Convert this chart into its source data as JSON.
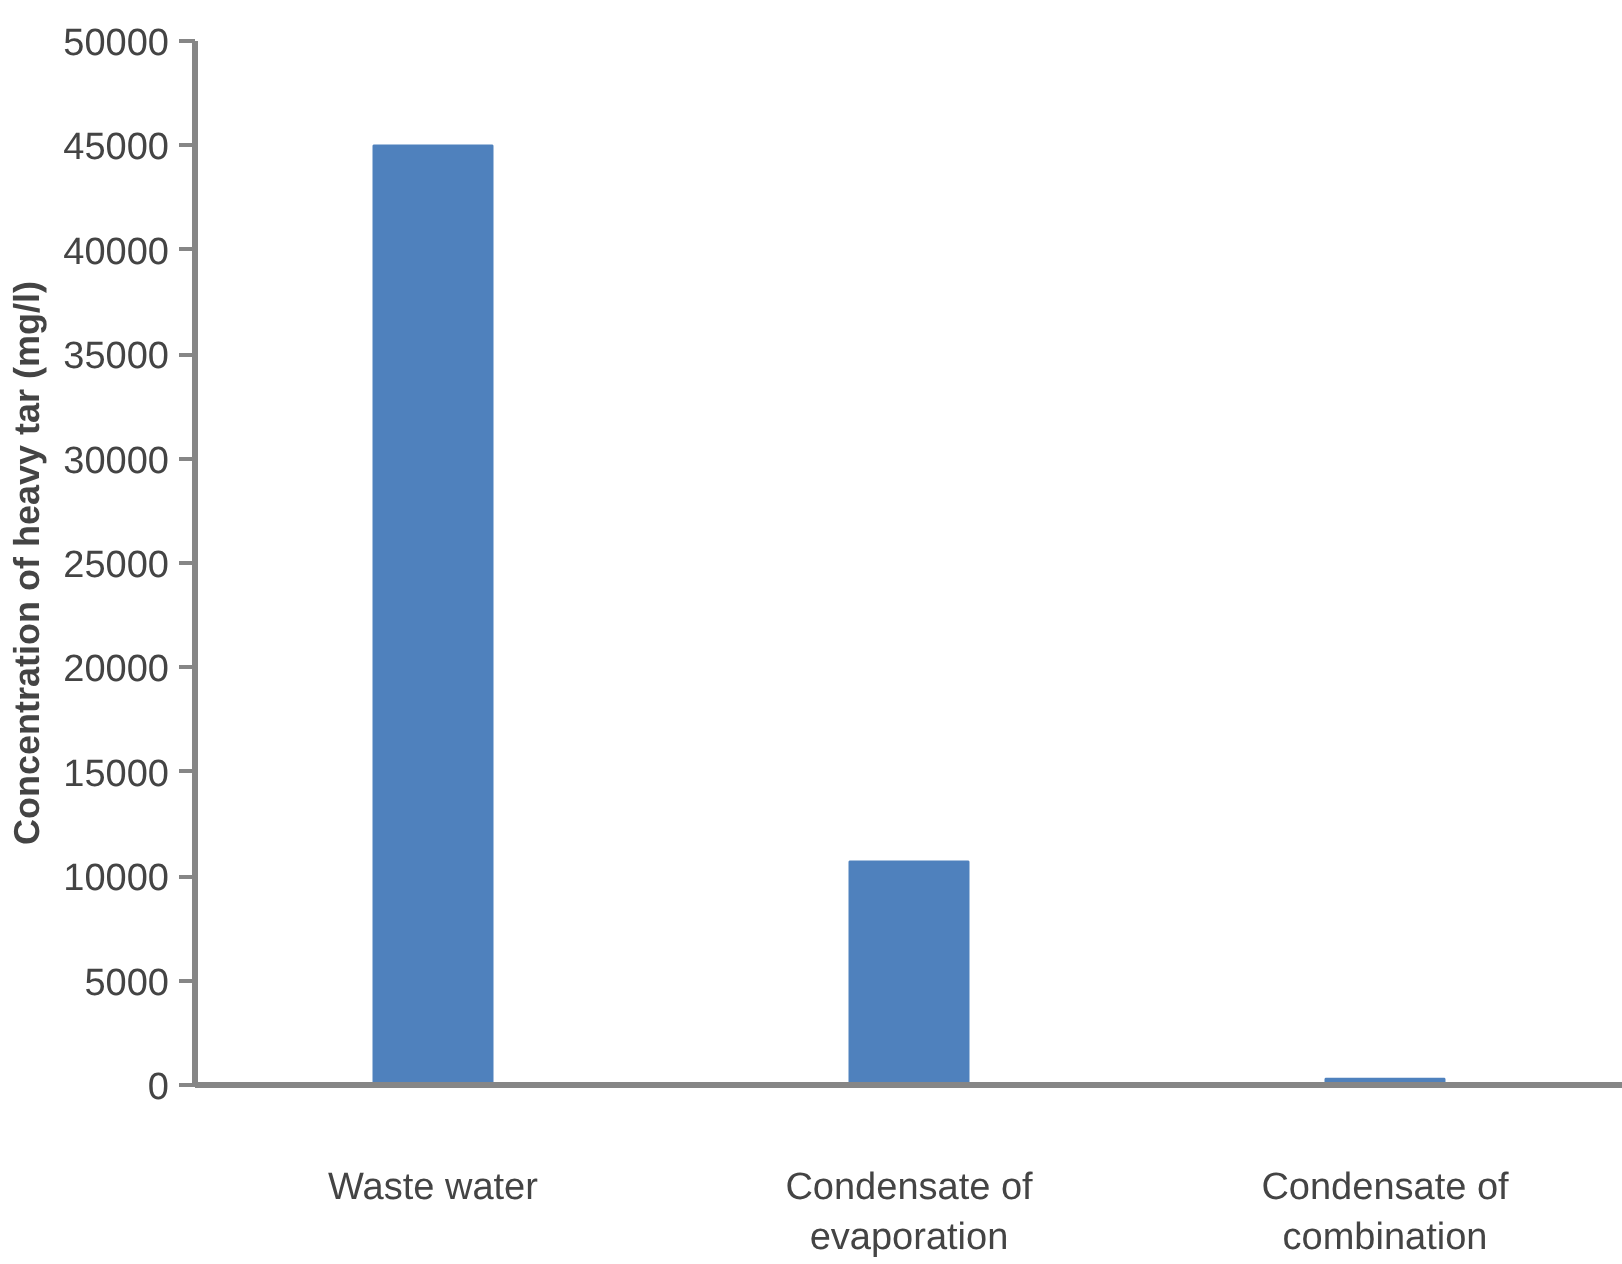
{
  "chart_data": {
    "type": "bar",
    "ylabel": "Concentration of heavy tar (mg/l)",
    "categories": [
      "Waste water",
      "Condensate of evaporation",
      "Condensate of combination"
    ],
    "values": [
      45000,
      10700,
      300
    ],
    "color": "#4f81bd",
    "ylim": [
      0,
      50000
    ],
    "yticks": [
      0,
      5000,
      10000,
      15000,
      20000,
      25000,
      30000,
      35000,
      40000,
      45000,
      50000
    ],
    "grid": false
  }
}
